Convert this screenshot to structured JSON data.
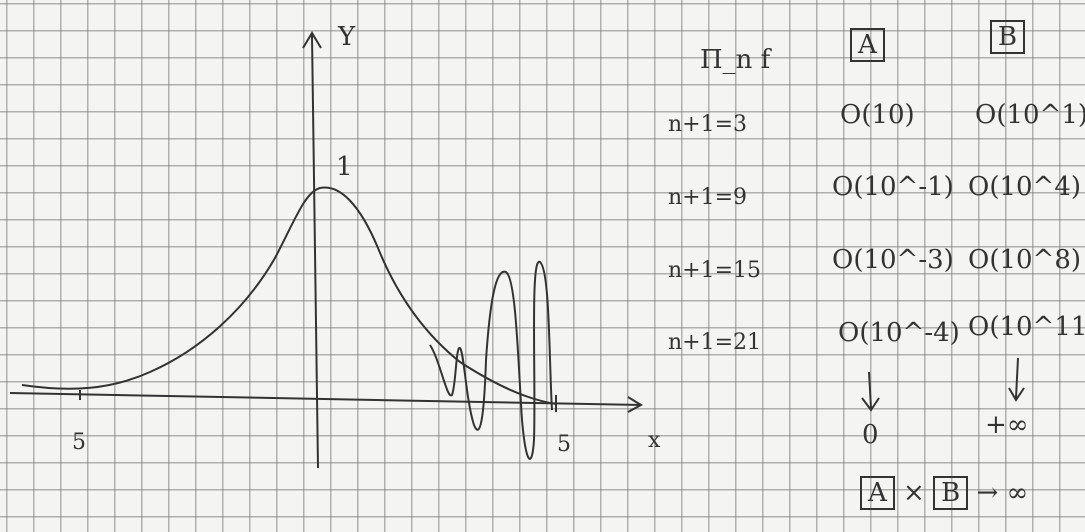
{
  "graph": {
    "y_label": "Y",
    "x_label": "x",
    "peak_label": "1",
    "left_tick_label": "5",
    "right_tick_label": "5"
  },
  "table": {
    "corner_label": "Π_n f",
    "columns": [
      "A",
      "B"
    ],
    "rows": [
      {
        "label": "n+1=3",
        "a": "O(10)",
        "b": "O(10^1)"
      },
      {
        "label": "n+1=9",
        "a": "O(10^-1)",
        "b": "O(10^4)"
      },
      {
        "label": "n+1=15",
        "a": "O(10^-3)",
        "b": "O(10^8)"
      },
      {
        "label": "n+1=21",
        "a": "O(10^-4)",
        "b": "O(10^11)"
      }
    ],
    "limit_a": "0",
    "limit_b": "+∞",
    "ratio": {
      "left": "A",
      "op": "×",
      "right": "B",
      "arrow": "→",
      "result": "∞"
    }
  }
}
